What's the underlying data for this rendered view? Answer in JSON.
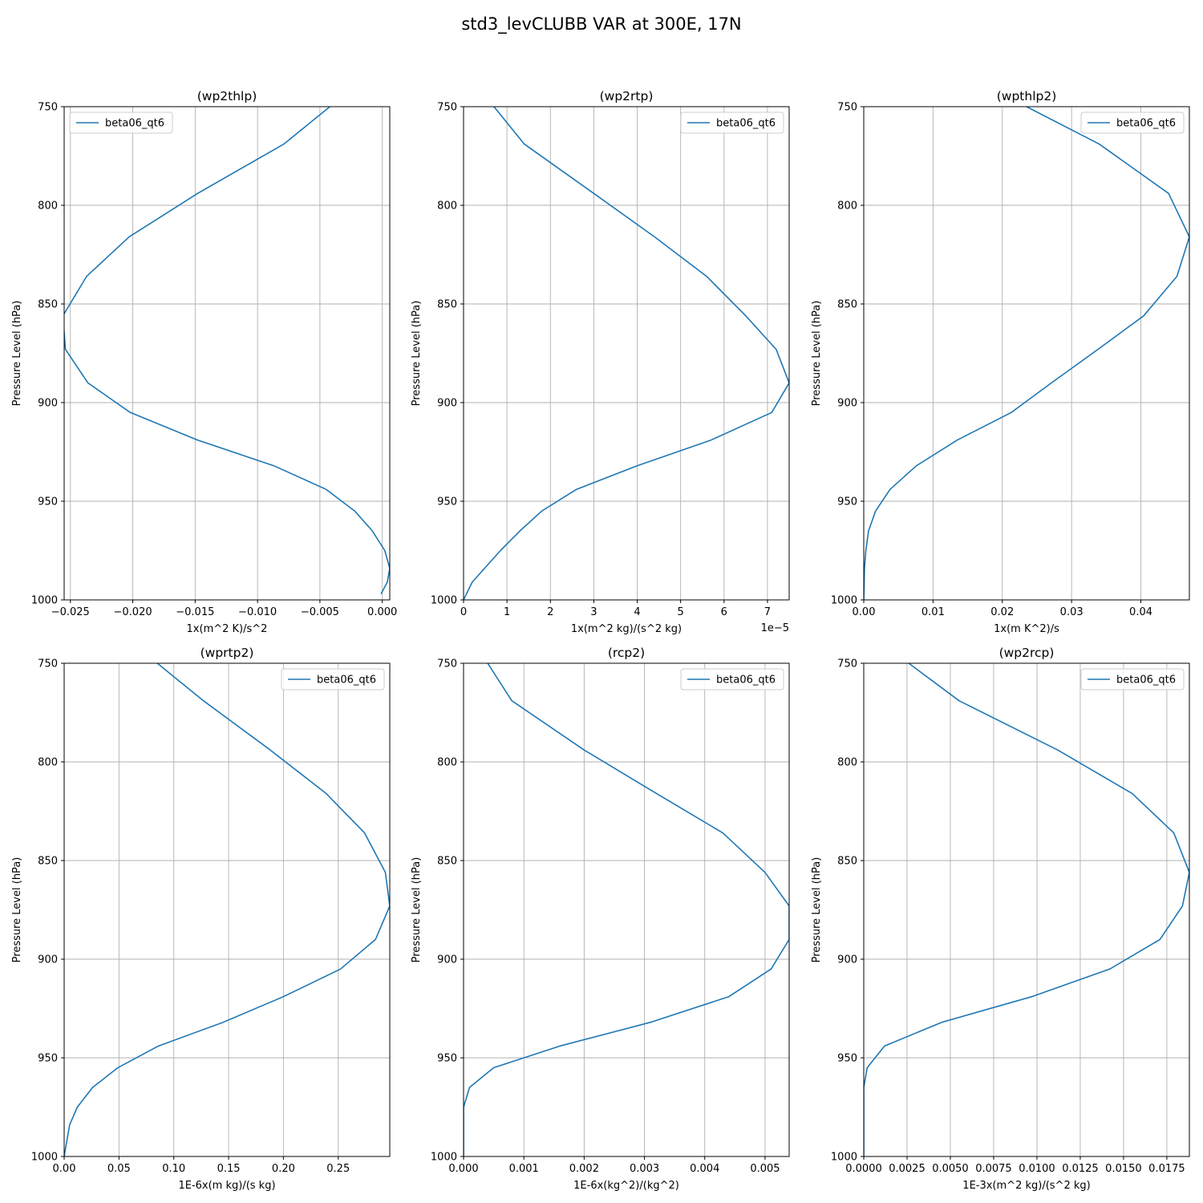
{
  "figure": {
    "title": "std3_levCLUBB VAR at 300E, 17N"
  },
  "colors": {
    "series": "#1f77b4"
  },
  "chart_data": [
    {
      "type": "line",
      "title": "(wp2thlp)",
      "xlabel": "1x(m^2 K)/s^2",
      "ylabel": "Pressure Level (hPa)",
      "xlim": [
        -0.0255,
        0.0006
      ],
      "ylim": [
        1000,
        750
      ],
      "xticks": [
        -0.025,
        -0.02,
        -0.015,
        -0.01,
        -0.005,
        0.0
      ],
      "xtick_labels": [
        "−0.025",
        "−0.020",
        "−0.015",
        "−0.010",
        "−0.005",
        "0.000"
      ],
      "yticks": [
        750,
        800,
        850,
        900,
        950,
        1000
      ],
      "ytick_labels": [
        "750",
        "800",
        "850",
        "900",
        "950",
        "1000"
      ],
      "offset_text": "",
      "grid": true,
      "legend_loc": "upper-left",
      "series": [
        {
          "name": "beta06_qt6",
          "x": [
            -0.0042,
            -0.0079,
            -0.0148,
            -0.0203,
            -0.0237,
            -0.0256,
            -0.0254,
            -0.0236,
            -0.0202,
            -0.0148,
            -0.0087,
            -0.0045,
            -0.0022,
            -0.0008,
            0.0002,
            0.0006,
            0.0004,
            -0.0001
          ],
          "y": [
            750,
            769,
            794,
            816,
            836,
            856,
            873,
            890,
            905,
            919,
            932,
            944,
            955,
            965,
            975,
            984,
            991,
            997
          ]
        }
      ]
    },
    {
      "type": "line",
      "title": "(wp2rtp)",
      "xlabel": "1x(m^2 kg)/(s^2 kg)",
      "ylabel": "Pressure Level (hPa)",
      "xlim": [
        0,
        7.5
      ],
      "ylim": [
        1000,
        750
      ],
      "xticks": [
        0,
        1,
        2,
        3,
        4,
        5,
        6,
        7
      ],
      "xtick_labels": [
        "0",
        "1",
        "2",
        "3",
        "4",
        "5",
        "6",
        "7"
      ],
      "yticks": [
        750,
        800,
        850,
        900,
        950,
        1000
      ],
      "ytick_labels": [
        "750",
        "800",
        "850",
        "900",
        "950",
        "1000"
      ],
      "offset_text": "1e−5",
      "grid": true,
      "legend_loc": "upper-right",
      "series": [
        {
          "name": "beta06_qt6",
          "x": [
            0.7,
            1.4,
            3.0,
            4.4,
            5.6,
            6.5,
            7.2,
            7.5,
            7.1,
            5.7,
            4.0,
            2.6,
            1.8,
            1.3,
            0.85,
            0.2,
            0.0
          ],
          "y": [
            750,
            769,
            794,
            816,
            836,
            856,
            873,
            890,
            905,
            919,
            932,
            944,
            955,
            965,
            975,
            991,
            1000
          ]
        }
      ]
    },
    {
      "type": "line",
      "title": "(wpthlp2)",
      "xlabel": "1x(m K^2)/s",
      "ylabel": "Pressure Level (hPa)",
      "xlim": [
        0,
        0.047
      ],
      "ylim": [
        1000,
        750
      ],
      "xticks": [
        0,
        0.01,
        0.02,
        0.03,
        0.04
      ],
      "xtick_labels": [
        "0.00",
        "0.01",
        "0.02",
        "0.03",
        "0.04"
      ],
      "yticks": [
        750,
        800,
        850,
        900,
        950,
        1000
      ],
      "ytick_labels": [
        "750",
        "800",
        "850",
        "900",
        "950",
        "1000"
      ],
      "offset_text": "",
      "grid": true,
      "legend_loc": "upper-right",
      "series": [
        {
          "name": "beta06_qt6",
          "x": [
            0.0235,
            0.034,
            0.044,
            0.047,
            0.0452,
            0.0404,
            0.0338,
            0.0271,
            0.0213,
            0.0135,
            0.0076,
            0.0038,
            0.0017,
            0.0007,
            0.0003,
            0.0001,
            0.0
          ],
          "y": [
            750,
            769,
            794,
            816,
            836,
            856,
            873,
            890,
            905,
            919,
            932,
            944,
            955,
            965,
            975,
            984,
            1000
          ]
        }
      ]
    },
    {
      "type": "line",
      "title": "(wprtp2)",
      "xlabel": "1E-6x(m kg)/(s kg)",
      "ylabel": "Pressure Level (hPa)",
      "xlim": [
        0,
        0.297
      ],
      "ylim": [
        1000,
        750
      ],
      "xticks": [
        0,
        0.05,
        0.1,
        0.15,
        0.2,
        0.25
      ],
      "xtick_labels": [
        "0.00",
        "0.05",
        "0.10",
        "0.15",
        "0.20",
        "0.25"
      ],
      "yticks": [
        750,
        800,
        850,
        900,
        950,
        1000
      ],
      "ytick_labels": [
        "750",
        "800",
        "850",
        "900",
        "950",
        "1000"
      ],
      "offset_text": "",
      "grid": true,
      "legend_loc": "upper-right",
      "series": [
        {
          "name": "beta06_qt6",
          "x": [
            0.085,
            0.127,
            0.188,
            0.239,
            0.274,
            0.293,
            0.297,
            0.284,
            0.252,
            0.2,
            0.145,
            0.086,
            0.049,
            0.026,
            0.012,
            0.005,
            0.0
          ],
          "y": [
            750,
            769,
            794,
            816,
            836,
            856,
            873,
            890,
            905,
            919,
            932,
            944,
            955,
            965,
            975,
            984,
            1000
          ]
        }
      ]
    },
    {
      "type": "line",
      "title": "(rcp2)",
      "xlabel": "1E-6x(kg^2)/(kg^2)",
      "ylabel": "Pressure Level (hPa)",
      "xlim": [
        0,
        0.0054
      ],
      "ylim": [
        1000,
        750
      ],
      "xticks": [
        0,
        0.001,
        0.002,
        0.003,
        0.004,
        0.005
      ],
      "xtick_labels": [
        "0.000",
        "0.001",
        "0.002",
        "0.003",
        "0.004",
        "0.005"
      ],
      "yticks": [
        750,
        800,
        850,
        900,
        950,
        1000
      ],
      "ytick_labels": [
        "750",
        "800",
        "850",
        "900",
        "950",
        "1000"
      ],
      "offset_text": "",
      "grid": true,
      "legend_loc": "upper-right",
      "series": [
        {
          "name": "beta06_qt6",
          "x": [
            0.0004,
            0.0008,
            0.002,
            0.0032,
            0.0043,
            0.005,
            0.0054,
            0.0054,
            0.0051,
            0.0044,
            0.0031,
            0.0016,
            0.0005,
            0.0001,
            0.0,
            0.0
          ],
          "y": [
            750,
            769,
            794,
            816,
            836,
            856,
            873,
            890,
            905,
            919,
            932,
            944,
            955,
            965,
            975,
            1000
          ]
        }
      ]
    },
    {
      "type": "line",
      "title": "(wp2rcp)",
      "xlabel": "1E-3x(m^2 kg)/(s^2 kg)",
      "ylabel": "Pressure Level (hPa)",
      "xlim": [
        0,
        0.0188
      ],
      "ylim": [
        1000,
        750
      ],
      "xticks": [
        0,
        0.0025,
        0.005,
        0.0075,
        0.01,
        0.0125,
        0.015,
        0.0175
      ],
      "xtick_labels": [
        "0.0000",
        "0.0025",
        "0.0050",
        "0.0075",
        "0.0100",
        "0.0125",
        "0.0150",
        "0.0175"
      ],
      "yticks": [
        750,
        800,
        850,
        900,
        950,
        1000
      ],
      "ytick_labels": [
        "750",
        "800",
        "850",
        "900",
        "950",
        "1000"
      ],
      "offset_text": "",
      "grid": true,
      "legend_loc": "upper-right",
      "series": [
        {
          "name": "beta06_qt6",
          "x": [
            0.0026,
            0.0055,
            0.0112,
            0.0155,
            0.0179,
            0.0188,
            0.0184,
            0.0171,
            0.0142,
            0.0097,
            0.0045,
            0.0012,
            0.0002,
            0.0,
            0.0
          ],
          "y": [
            750,
            769,
            794,
            816,
            836,
            856,
            873,
            890,
            905,
            919,
            932,
            944,
            955,
            965,
            1000
          ]
        }
      ]
    }
  ]
}
